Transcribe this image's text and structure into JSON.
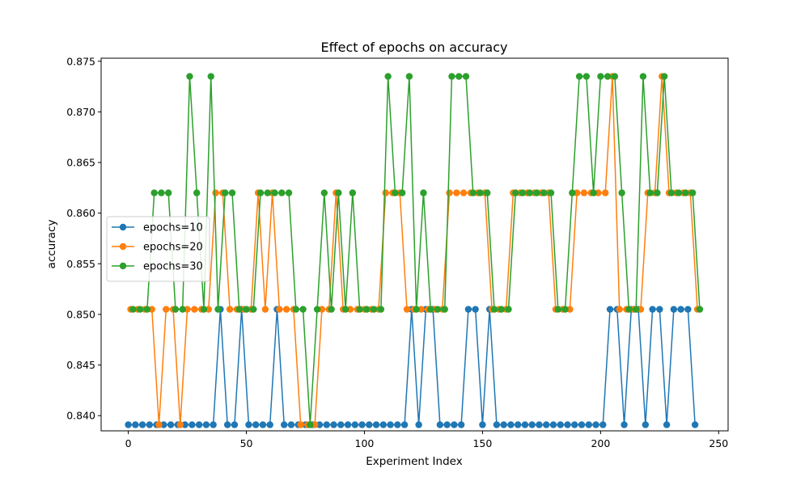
{
  "chart_data": {
    "type": "line",
    "title": "Effect of epochs on accuracy",
    "xlabel": "Experiment Index",
    "ylabel": "accuracy",
    "xlim": [
      -11.5,
      254
    ],
    "ylim": [
      0.8385,
      0.8753
    ],
    "xticks": [
      0,
      50,
      100,
      150,
      200,
      250
    ],
    "yticks": [
      0.84,
      0.845,
      0.85,
      0.855,
      0.86,
      0.865,
      0.87,
      0.875
    ],
    "grid": false,
    "legend_position": "center-left",
    "series": [
      {
        "name": "epochs=10",
        "color": "#1f77b4",
        "x": [
          0,
          3,
          6,
          9,
          12,
          15,
          18,
          21,
          24,
          27,
          30,
          33,
          36,
          39,
          42,
          45,
          48,
          51,
          54,
          57,
          60,
          63,
          66,
          69,
          72,
          75,
          78,
          81,
          84,
          87,
          90,
          93,
          96,
          99,
          102,
          105,
          108,
          111,
          114,
          117,
          120,
          123,
          126,
          129,
          132,
          135,
          138,
          141,
          144,
          147,
          150,
          153,
          156,
          159,
          162,
          165,
          168,
          171,
          174,
          177,
          180,
          183,
          186,
          189,
          192,
          195,
          198,
          201,
          204,
          207,
          210,
          213,
          216,
          219,
          222,
          225,
          228,
          231,
          234,
          237,
          240
        ],
        "y": [
          0.8391,
          0.8391,
          0.8391,
          0.8391,
          0.8391,
          0.8391,
          0.8391,
          0.8391,
          0.8391,
          0.8391,
          0.8391,
          0.8391,
          0.8391,
          0.8505,
          0.8391,
          0.8391,
          0.8505,
          0.8391,
          0.8391,
          0.8391,
          0.8391,
          0.8505,
          0.8391,
          0.8391,
          0.8391,
          0.8391,
          0.8391,
          0.8391,
          0.8391,
          0.8391,
          0.8391,
          0.8391,
          0.8391,
          0.8391,
          0.8391,
          0.8391,
          0.8391,
          0.8391,
          0.8391,
          0.8391,
          0.8505,
          0.8391,
          0.8505,
          0.8505,
          0.8391,
          0.8391,
          0.8391,
          0.8391,
          0.8505,
          0.8505,
          0.8391,
          0.8505,
          0.8391,
          0.8391,
          0.8391,
          0.8391,
          0.8391,
          0.8391,
          0.8391,
          0.8391,
          0.8391,
          0.8391,
          0.8391,
          0.8391,
          0.8391,
          0.8391,
          0.8391,
          0.8391,
          0.8505,
          0.8505,
          0.8391,
          0.8505,
          0.8505,
          0.8391,
          0.8505,
          0.8505,
          0.8391,
          0.8505,
          0.8505,
          0.8505,
          0.8391
        ]
      },
      {
        "name": "epochs=20",
        "color": "#ff7f0e",
        "x": [
          1,
          4,
          7,
          10,
          13,
          16,
          19,
          22,
          25,
          28,
          31,
          34,
          37,
          40,
          43,
          46,
          49,
          52,
          55,
          58,
          61,
          64,
          67,
          70,
          73,
          76,
          79,
          82,
          85,
          88,
          91,
          94,
          97,
          100,
          103,
          106,
          109,
          112,
          115,
          118,
          121,
          124,
          127,
          130,
          133,
          136,
          139,
          142,
          145,
          148,
          151,
          154,
          157,
          160,
          163,
          166,
          169,
          172,
          175,
          178,
          181,
          184,
          187,
          190,
          193,
          196,
          199,
          202,
          205,
          208,
          211,
          214,
          217,
          220,
          223,
          226,
          229,
          232,
          235,
          238,
          241
        ],
        "y": [
          0.8505,
          0.8505,
          0.8505,
          0.8505,
          0.8391,
          0.8505,
          0.8505,
          0.8391,
          0.8505,
          0.8505,
          0.8505,
          0.8505,
          0.862,
          0.862,
          0.8505,
          0.8505,
          0.8505,
          0.8505,
          0.862,
          0.8505,
          0.862,
          0.8505,
          0.8505,
          0.8505,
          0.8391,
          0.8391,
          0.8391,
          0.8505,
          0.8505,
          0.862,
          0.8505,
          0.8505,
          0.8505,
          0.8505,
          0.8505,
          0.8505,
          0.862,
          0.862,
          0.862,
          0.8505,
          0.8505,
          0.8505,
          0.8505,
          0.8505,
          0.8505,
          0.862,
          0.862,
          0.862,
          0.862,
          0.862,
          0.862,
          0.8505,
          0.8505,
          0.8505,
          0.862,
          0.862,
          0.862,
          0.862,
          0.862,
          0.862,
          0.8505,
          0.8505,
          0.8505,
          0.862,
          0.862,
          0.862,
          0.862,
          0.862,
          0.8735,
          0.8505,
          0.8505,
          0.8505,
          0.8505,
          0.862,
          0.862,
          0.8735,
          0.862,
          0.862,
          0.862,
          0.862,
          0.8505
        ]
      },
      {
        "name": "epochs=30",
        "color": "#2ca02c",
        "x": [
          2,
          5,
          8,
          11,
          14,
          17,
          20,
          23,
          26,
          29,
          32,
          35,
          38,
          41,
          44,
          47,
          50,
          53,
          56,
          59,
          62,
          65,
          68,
          71,
          74,
          77,
          80,
          83,
          86,
          89,
          92,
          95,
          98,
          101,
          104,
          107,
          110,
          113,
          116,
          119,
          122,
          125,
          128,
          131,
          134,
          137,
          140,
          143,
          146,
          149,
          152,
          155,
          158,
          161,
          164,
          167,
          170,
          173,
          176,
          179,
          182,
          185,
          188,
          191,
          194,
          197,
          200,
          203,
          206,
          209,
          212,
          215,
          218,
          221,
          224,
          227,
          230,
          233,
          236,
          239,
          242
        ],
        "y": [
          0.8505,
          0.8505,
          0.8505,
          0.862,
          0.862,
          0.862,
          0.8505,
          0.8505,
          0.8735,
          0.862,
          0.8505,
          0.8735,
          0.8505,
          0.862,
          0.862,
          0.8505,
          0.8505,
          0.8505,
          0.862,
          0.862,
          0.862,
          0.862,
          0.862,
          0.8505,
          0.8505,
          0.8391,
          0.8505,
          0.862,
          0.8505,
          0.862,
          0.8505,
          0.862,
          0.8505,
          0.8505,
          0.8505,
          0.8505,
          0.8735,
          0.862,
          0.862,
          0.8735,
          0.8505,
          0.862,
          0.8505,
          0.8505,
          0.8505,
          0.8735,
          0.8735,
          0.8735,
          0.862,
          0.862,
          0.862,
          0.8505,
          0.8505,
          0.8505,
          0.862,
          0.862,
          0.862,
          0.862,
          0.862,
          0.862,
          0.8505,
          0.8505,
          0.862,
          0.8735,
          0.8735,
          0.862,
          0.8735,
          0.8735,
          0.8735,
          0.862,
          0.8505,
          0.8505,
          0.8735,
          0.862,
          0.862,
          0.8735,
          0.862,
          0.862,
          0.862,
          0.862,
          0.8505
        ]
      }
    ]
  }
}
